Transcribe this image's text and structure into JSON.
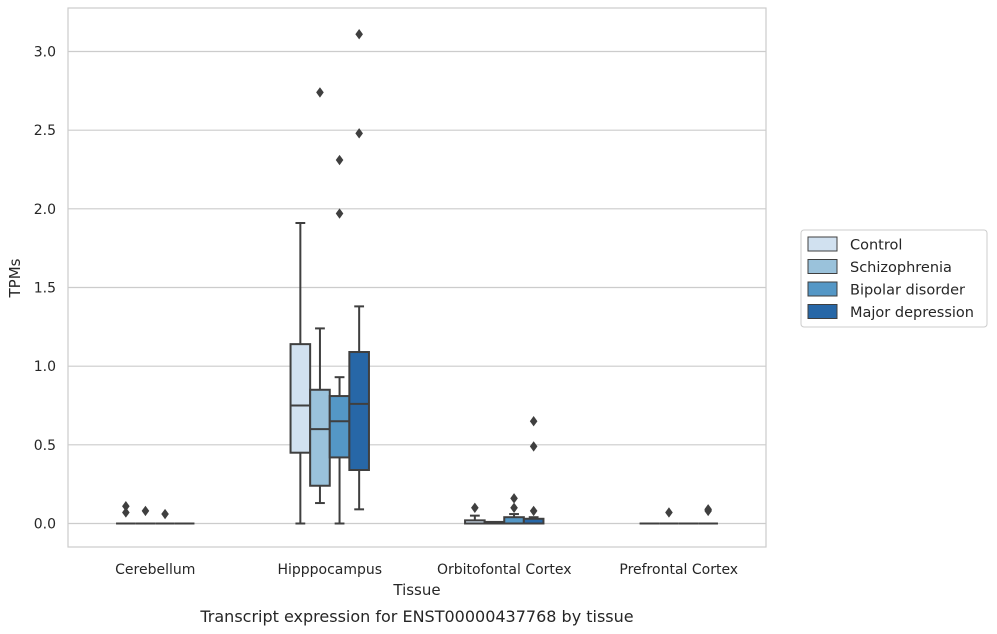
{
  "chart_data": {
    "type": "box",
    "title": "",
    "caption": "Transcript expression for ENST00000437768 by tissue",
    "xlabel": "Tissue",
    "ylabel": "TPMs",
    "ylim": [
      -0.15,
      3.27
    ],
    "yticks": [
      0.0,
      0.5,
      1.0,
      1.5,
      2.0,
      2.5,
      3.0
    ],
    "ytick_labels": [
      "0.0",
      "0.5",
      "1.0",
      "1.5",
      "2.0",
      "2.5",
      "3.0"
    ],
    "grid": "horizontal",
    "legend_placement": "right",
    "categories": [
      "Cerebellum",
      "Hipppocampus",
      "Orbitofontal Cortex",
      "Prefrontal Cortex"
    ],
    "series": [
      {
        "name": "Control",
        "color": "#d1e1f0",
        "boxes": [
          {
            "min": 0.0,
            "q1": 0.0,
            "median": 0.0,
            "q3": 0.0,
            "max": 0.0,
            "outliers": [
              0.07,
              0.11
            ]
          },
          {
            "min": 0.0,
            "q1": 0.45,
            "median": 0.75,
            "q3": 1.14,
            "max": 1.91,
            "outliers": []
          },
          {
            "min": 0.0,
            "q1": 0.0,
            "median": 0.0,
            "q3": 0.02,
            "max": 0.05,
            "outliers": [
              0.1
            ]
          },
          {
            "min": 0.0,
            "q1": 0.0,
            "median": 0.0,
            "q3": 0.0,
            "max": 0.0,
            "outliers": []
          }
        ]
      },
      {
        "name": "Schizophrenia",
        "color": "#9ac2db",
        "boxes": [
          {
            "min": 0.0,
            "q1": 0.0,
            "median": 0.0,
            "q3": 0.0,
            "max": 0.0,
            "outliers": [
              0.08
            ]
          },
          {
            "min": 0.13,
            "q1": 0.24,
            "median": 0.6,
            "q3": 0.85,
            "max": 1.24,
            "outliers": [
              2.74
            ]
          },
          {
            "min": 0.0,
            "q1": 0.0,
            "median": 0.0,
            "q3": 0.01,
            "max": 0.01,
            "outliers": []
          },
          {
            "min": 0.0,
            "q1": 0.0,
            "median": 0.0,
            "q3": 0.0,
            "max": 0.0,
            "outliers": [
              0.07
            ]
          }
        ]
      },
      {
        "name": "Bipolar disorder",
        "color": "#5497c6",
        "boxes": [
          {
            "min": 0.0,
            "q1": 0.0,
            "median": 0.0,
            "q3": 0.0,
            "max": 0.0,
            "outliers": [
              0.06
            ]
          },
          {
            "min": 0.0,
            "q1": 0.42,
            "median": 0.65,
            "q3": 0.81,
            "max": 0.93,
            "outliers": [
              1.97,
              2.31
            ]
          },
          {
            "min": 0.0,
            "q1": 0.0,
            "median": 0.0,
            "q3": 0.04,
            "max": 0.06,
            "outliers": [
              0.1,
              0.16
            ]
          },
          {
            "min": 0.0,
            "q1": 0.0,
            "median": 0.0,
            "q3": 0.0,
            "max": 0.0,
            "outliers": []
          }
        ]
      },
      {
        "name": "Major depression",
        "color": "#2767a7",
        "boxes": [
          {
            "min": 0.0,
            "q1": 0.0,
            "median": 0.0,
            "q3": 0.0,
            "max": 0.0,
            "outliers": []
          },
          {
            "min": 0.09,
            "q1": 0.34,
            "median": 0.76,
            "q3": 1.09,
            "max": 1.38,
            "outliers": [
              2.48,
              3.11
            ]
          },
          {
            "min": 0.0,
            "q1": 0.0,
            "median": 0.0,
            "q3": 0.03,
            "max": 0.04,
            "outliers": [
              0.08,
              0.49,
              0.65
            ]
          },
          {
            "min": 0.0,
            "q1": 0.0,
            "median": 0.0,
            "q3": 0.0,
            "max": 0.0,
            "outliers": [
              0.08,
              0.09
            ]
          }
        ]
      }
    ]
  }
}
